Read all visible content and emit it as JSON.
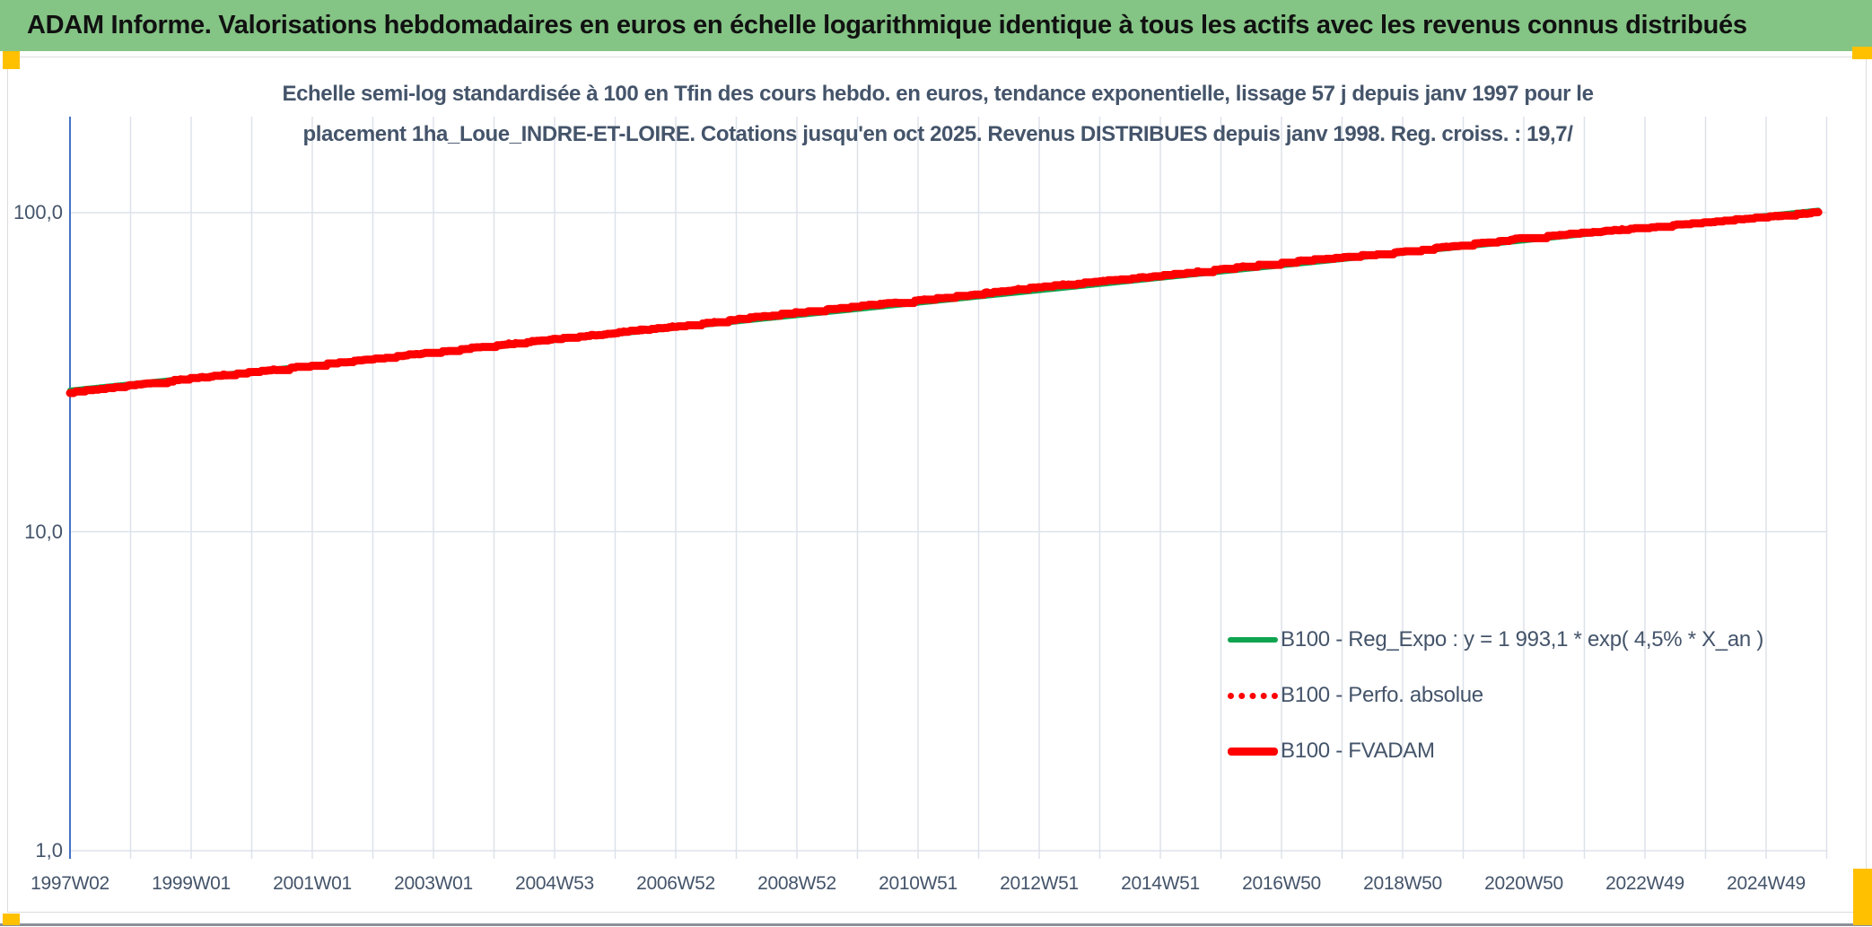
{
  "header": {
    "title": "ADAM Informe. Valorisations hebdomadaires en euros en échelle logarithmique identique à tous les actifs avec les revenus connus distribués",
    "bg_color": "#84C485"
  },
  "accent_color": "#FFC000",
  "colors": {
    "text_dark": "#44546A",
    "grid": "#DDE2EA",
    "axis_line": "#4472C4",
    "reg_green": "#0FA44F",
    "series_red": "#FF0000"
  },
  "chart_data": {
    "type": "line",
    "title_line1": "Echelle semi-log standardisée à 100 en Tfin des cours hebdo. en euros, tendance exponentielle, lissage 57 j depuis janv 1997 pour le",
    "title_line2": "placement 1ha_Loue_INDRE-ET-LOIRE. Cotations jusqu'en oct 2025. Revenus DISTRIBUES depuis janv 1998. Reg. croiss. : 19,7/",
    "x_axis": {
      "tick_labels": [
        "1997W02",
        "1999W01",
        "2001W01",
        "2003W01",
        "2004W53",
        "2006W52",
        "2008W52",
        "2010W51",
        "2012W51",
        "2014W51",
        "2016W50",
        "2018W50",
        "2020W50",
        "2022W49",
        "2024W49"
      ],
      "start_year": 1997.02,
      "end_year": 2025.9,
      "years_per_labelled_tick": 2,
      "minor_gridline_interval_years": 1
    },
    "y_axis": {
      "scale": "log",
      "ticks": [
        {
          "label": "100,0",
          "value": 100
        },
        {
          "label": "10,0",
          "value": 10
        },
        {
          "label": "1,0",
          "value": 1
        }
      ],
      "min": 1,
      "max": 200,
      "grid": true
    },
    "legend_position": "right-center",
    "series": [
      {
        "name": "B100 - Reg_Expo : y = 1 993,1 * exp( 4,5% *  X_an )",
        "color": "#0FA44F",
        "style": "solid",
        "line_width": 6,
        "model": {
          "type": "exponential",
          "value_start": 27.8,
          "value_end": 101.8,
          "t_end": 2025.9,
          "growth_rate_pct_per_year": 4.5
        }
      },
      {
        "name": "B100 - Perfo. absolue",
        "color": "#FF0000",
        "style": "dotted",
        "line_width": 6,
        "note": "coincides with B100 - FVADAM curve (hidden underneath it)"
      },
      {
        "name": "B100 - FVADAM",
        "color": "#FF0000",
        "style": "solid_staircase",
        "line_width": 9,
        "points": [
          [
            1997.02,
            27.3
          ],
          [
            1998,
            28.7
          ],
          [
            1999,
            30.2
          ],
          [
            2000,
            31.6
          ],
          [
            2001,
            33.1
          ],
          [
            2002,
            34.8
          ],
          [
            2003,
            36.5
          ],
          [
            2004,
            38.3
          ],
          [
            2005,
            40.1
          ],
          [
            2006,
            42.0
          ],
          [
            2007,
            44.0
          ],
          [
            2008,
            46.3
          ],
          [
            2009,
            48.6
          ],
          [
            2010,
            50.8
          ],
          [
            2011,
            53.0
          ],
          [
            2012,
            55.6
          ],
          [
            2013,
            58.4
          ],
          [
            2014,
            60.8
          ],
          [
            2015,
            63.3
          ],
          [
            2016,
            66.4
          ],
          [
            2017,
            69.6
          ],
          [
            2018,
            72.5
          ],
          [
            2019,
            75.5
          ],
          [
            2020,
            79.2
          ],
          [
            2021,
            83.1
          ],
          [
            2022,
            86.4
          ],
          [
            2023,
            89.8
          ],
          [
            2024,
            93.3
          ],
          [
            2025,
            96.8
          ],
          [
            2025.9,
            100.3
          ]
        ]
      }
    ]
  }
}
